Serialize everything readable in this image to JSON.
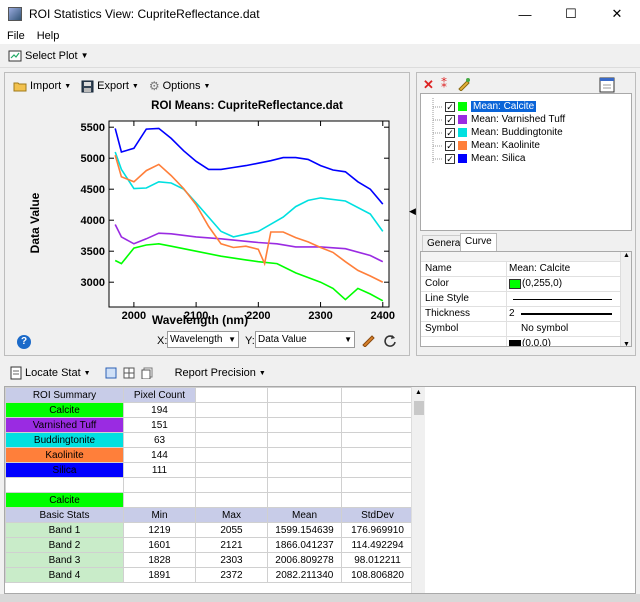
{
  "window": {
    "title": "ROI Statistics View: CupriteReflectance.dat",
    "minimize_glyph": "—",
    "maximize_glyph": "☐",
    "close_glyph": "✕"
  },
  "menu": {
    "file": "File",
    "help": "Help"
  },
  "toolbar": {
    "select_plot": "Select Plot"
  },
  "plot_toolbar": {
    "import": "Import",
    "export": "Export",
    "options": "Options"
  },
  "plot_controls": {
    "x_label": "X:",
    "x_value": "Wavelength",
    "y_label": "Y:",
    "y_value": "Data Value"
  },
  "chart_data": {
    "type": "line",
    "title": "ROI Means: CupriteReflectance.dat",
    "xlabel": "Wavelength (nm)",
    "ylabel": "Data Value",
    "xlim": [
      1960,
      2410
    ],
    "ylim": [
      2600,
      5600
    ],
    "xticks": [
      2000,
      2100,
      2200,
      2300,
      2400
    ],
    "yticks": [
      3000,
      3500,
      4000,
      4500,
      5000,
      5500
    ],
    "series": [
      {
        "name": "Mean: Calcite",
        "color": "#00ff00",
        "x": [
          1970,
          1980,
          2000,
          2020,
          2040,
          2060,
          2100,
          2140,
          2180,
          2200,
          2230,
          2260,
          2300,
          2320,
          2340,
          2360,
          2380,
          2400
        ],
        "y": [
          3350,
          3300,
          3550,
          3600,
          3620,
          3580,
          3500,
          3420,
          3360,
          3330,
          3300,
          3150,
          3000,
          2900,
          2720,
          2900,
          2810,
          2700
        ]
      },
      {
        "name": "Mean: Varnished Tuff",
        "color": "#9a2be2",
        "x": [
          1970,
          1980,
          2000,
          2020,
          2040,
          2060,
          2100,
          2140,
          2180,
          2200,
          2230,
          2260,
          2300,
          2340,
          2380,
          2400
        ],
        "y": [
          3930,
          3730,
          3620,
          3700,
          3790,
          3780,
          3730,
          3700,
          3660,
          3640,
          3620,
          3570,
          3570,
          3540,
          3430,
          3330
        ]
      },
      {
        "name": "Mean: Buddingtonite",
        "color": "#00e0e0",
        "x": [
          1970,
          1980,
          2000,
          2020,
          2040,
          2060,
          2080,
          2100,
          2120,
          2140,
          2160,
          2200,
          2240,
          2260,
          2280,
          2300,
          2340,
          2380,
          2400
        ],
        "y": [
          5100,
          4820,
          4510,
          4520,
          4620,
          4600,
          4500,
          4280,
          4050,
          3820,
          3730,
          3820,
          4050,
          4220,
          4320,
          4360,
          4310,
          4100,
          3820
        ]
      },
      {
        "name": "Mean: Kaolinite",
        "color": "#ff7f3a",
        "x": [
          1970,
          1980,
          2000,
          2020,
          2040,
          2060,
          2080,
          2100,
          2120,
          2140,
          2160,
          2180,
          2200,
          2210,
          2220,
          2240,
          2260,
          2280,
          2300,
          2320,
          2340,
          2360,
          2380,
          2400
        ],
        "y": [
          5050,
          4700,
          4620,
          4800,
          4900,
          4720,
          4510,
          4250,
          3900,
          3620,
          3560,
          3580,
          3530,
          3300,
          3810,
          3810,
          3720,
          3650,
          3560,
          3480,
          3330,
          3190,
          3100,
          3000
        ]
      },
      {
        "name": "Mean: Silica",
        "color": "#0000ff",
        "x": [
          1970,
          1980,
          2000,
          2020,
          2040,
          2060,
          2080,
          2100,
          2120,
          2140,
          2160,
          2180,
          2200,
          2220,
          2240,
          2260,
          2280,
          2300,
          2320,
          2340,
          2360,
          2380,
          2400
        ],
        "y": [
          5480,
          5100,
          5160,
          5470,
          5480,
          5320,
          5120,
          4950,
          4820,
          4820,
          4850,
          4880,
          4920,
          4960,
          5010,
          5010,
          4980,
          4880,
          4810,
          4780,
          4620,
          4500,
          4260
        ]
      }
    ]
  },
  "curve_list": [
    {
      "label": "Mean: Calcite",
      "color": "#00ff00",
      "selected": true
    },
    {
      "label": "Mean: Varnished Tuff",
      "color": "#9a2be2",
      "selected": false
    },
    {
      "label": "Mean: Buddingtonite",
      "color": "#00e0e0",
      "selected": false
    },
    {
      "label": "Mean: Kaolinite",
      "color": "#ff7f3a",
      "selected": false
    },
    {
      "label": "Mean: Silica",
      "color": "#0000ff",
      "selected": false
    }
  ],
  "tabs": {
    "general": "General",
    "curve": "Curve"
  },
  "properties": {
    "name_label": "Name",
    "name_value": "Mean: Calcite",
    "color_label": "Color",
    "color_value": "(0,255,0)",
    "linestyle_label": "Line Style",
    "thickness_label": "Thickness",
    "thickness_value": "2",
    "symbol_label": "Symbol",
    "symbol_value": "No symbol",
    "partial_value": "(0,0,0)"
  },
  "stats_toolbar": {
    "locate_stat": "Locate Stat",
    "report_precision": "Report Precision"
  },
  "summary_table": {
    "headers": [
      "ROI Summary",
      "Pixel Count"
    ],
    "rows": [
      {
        "name": "Calcite",
        "count": "194",
        "color": "#00ff00"
      },
      {
        "name": "Varnished Tuff",
        "count": "151",
        "color": "#9a2be2"
      },
      {
        "name": "Buddingtonite",
        "count": "63",
        "color": "#00e0e0"
      },
      {
        "name": "Kaolinite",
        "count": "144",
        "color": "#ff7f3a"
      },
      {
        "name": "Silica",
        "count": "111",
        "color": "#0000ff"
      }
    ]
  },
  "stats_section": {
    "roi_name": "Calcite",
    "headers": [
      "Basic Stats",
      "Min",
      "Max",
      "Mean",
      "StdDev"
    ],
    "rows": [
      [
        "Band 1",
        "1219",
        "2055",
        "1599.154639",
        "176.969910"
      ],
      [
        "Band 2",
        "1601",
        "2121",
        "1866.041237",
        "114.492294"
      ],
      [
        "Band 3",
        "1828",
        "2303",
        "2006.809278",
        "98.012211"
      ],
      [
        "Band 4",
        "1891",
        "2372",
        "2082.211340",
        "108.806820"
      ]
    ]
  }
}
